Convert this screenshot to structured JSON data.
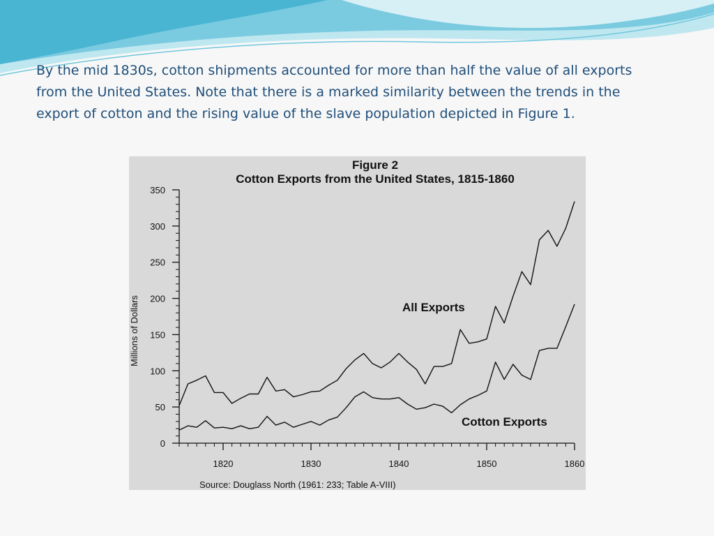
{
  "slide": {
    "text": "By the mid 1830s, cotton shipments accounted for more than half the value of all exports from the United States. Note that there is a marked similarity between the trends in the export of cotton and the rising value of the slave population depicted in Figure 1."
  },
  "colors": {
    "text": "#1f4e79",
    "chart_bg": "#d9d9d9",
    "line": "#111111",
    "wave_light": "#bfe7f0",
    "wave_mid": "#6fc6dd",
    "wave_dark": "#2aa6c8"
  },
  "chart_data": {
    "type": "line",
    "title": "Figure 2",
    "subtitle": "Cotton Exports from the United States, 1815-1860",
    "xlabel": "",
    "ylabel": "Millions of Dollars",
    "xlim": [
      1815,
      1860
    ],
    "ylim": [
      0,
      350
    ],
    "xticks": [
      1820,
      1830,
      1840,
      1850,
      1860
    ],
    "yticks": [
      0,
      50,
      100,
      150,
      200,
      250,
      300,
      350
    ],
    "grid": false,
    "source": "Source: Douglass North (1961: 233; Table A-VIII)",
    "x": [
      1815,
      1816,
      1817,
      1818,
      1819,
      1820,
      1821,
      1822,
      1823,
      1824,
      1825,
      1826,
      1827,
      1828,
      1829,
      1830,
      1831,
      1832,
      1833,
      1834,
      1835,
      1836,
      1837,
      1838,
      1839,
      1840,
      1841,
      1842,
      1843,
      1844,
      1845,
      1846,
      1847,
      1848,
      1849,
      1850,
      1851,
      1852,
      1853,
      1854,
      1855,
      1856,
      1857,
      1858,
      1859,
      1860
    ],
    "series": [
      {
        "name": "All Exports",
        "values": [
          52,
          82,
          87,
          93,
          70,
          70,
          55,
          62,
          68,
          68,
          91,
          72,
          74,
          64,
          67,
          71,
          72,
          80,
          87,
          103,
          115,
          124,
          110,
          104,
          112,
          124,
          112,
          102,
          82,
          106,
          106,
          110,
          157,
          138,
          140,
          144,
          189,
          166,
          203,
          237,
          219,
          281,
          294,
          272,
          297,
          334
        ]
      },
      {
        "name": "Cotton Exports",
        "values": [
          18,
          24,
          22,
          31,
          21,
          22,
          20,
          24,
          20,
          22,
          37,
          25,
          29,
          22,
          26,
          30,
          25,
          32,
          36,
          49,
          64,
          71,
          63,
          61,
          61,
          63,
          54,
          47,
          49,
          54,
          51,
          42,
          53,
          61,
          66,
          72,
          112,
          88,
          109,
          94,
          88,
          128,
          131,
          131,
          161,
          192
        ]
      }
    ]
  }
}
